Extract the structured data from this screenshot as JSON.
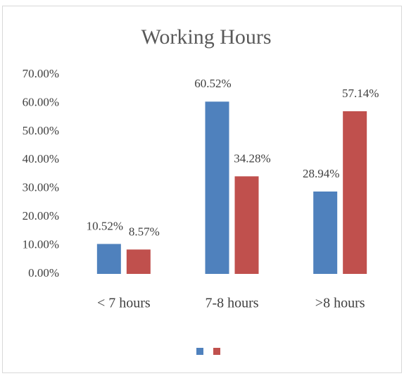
{
  "chart_data": {
    "type": "bar",
    "title": "Working Hours",
    "categories": [
      "< 7 hours",
      "7-8 hours",
      ">8 hours"
    ],
    "series": [
      {
        "color": "#4f81bd",
        "values": [
          10.52,
          60.52,
          28.94
        ],
        "value_labels": [
          "10.52%",
          "60.52%",
          "28.94%"
        ]
      },
      {
        "color": "#c0504d",
        "values": [
          8.57,
          34.28,
          57.14
        ],
        "value_labels": [
          "8.57%",
          "34.28%",
          "57.14%"
        ]
      }
    ],
    "ylim": [
      0,
      70
    ],
    "yticks": [
      {
        "value": 0,
        "label": "0.00%"
      },
      {
        "value": 10,
        "label": "10.00%"
      },
      {
        "value": 20,
        "label": "20.00%"
      },
      {
        "value": 30,
        "label": "30.00%"
      },
      {
        "value": 40,
        "label": "40.00%"
      },
      {
        "value": 50,
        "label": "50.00%"
      },
      {
        "value": 60,
        "label": "60.00%"
      },
      {
        "value": 70,
        "label": "70.00%"
      }
    ],
    "grid": false,
    "legend": "bottom"
  }
}
